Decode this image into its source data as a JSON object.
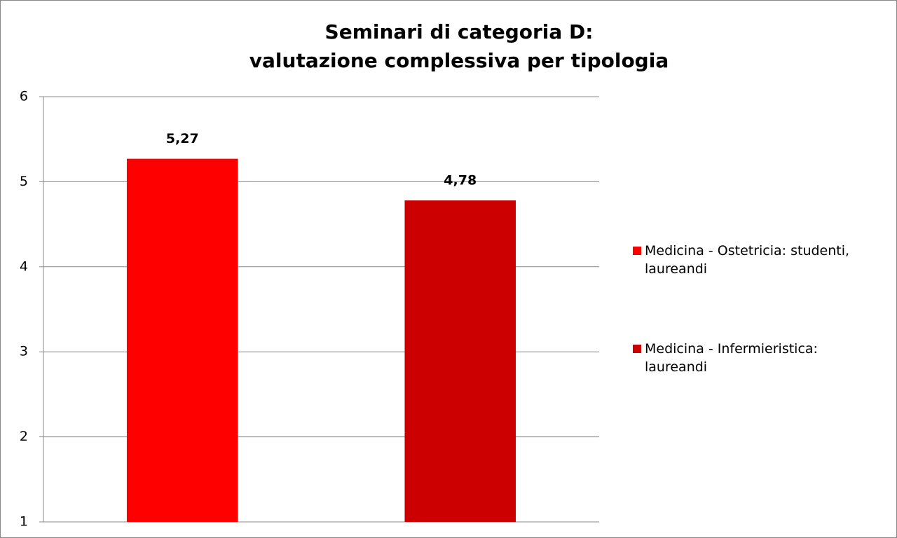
{
  "chart_data": {
    "type": "bar",
    "title": [
      "Seminari di categoria D:",
      "valutazione complessiva per tipologia"
    ],
    "categories": [
      null
    ],
    "series": [
      {
        "name": "Medicina - Ostetricia: studenti, laureandi",
        "color": "#ff0000",
        "values": [
          5.27
        ],
        "value_labels": [
          "5,27"
        ]
      },
      {
        "name": "Medicina - Infermieristica: laureandi",
        "color": "#cc0000",
        "values": [
          4.78
        ],
        "value_labels": [
          "4,78"
        ]
      }
    ],
    "ylim": [
      1,
      6
    ],
    "yticks": [
      1,
      2,
      3,
      4,
      5,
      6
    ],
    "grid": true,
    "legend": "right"
  }
}
